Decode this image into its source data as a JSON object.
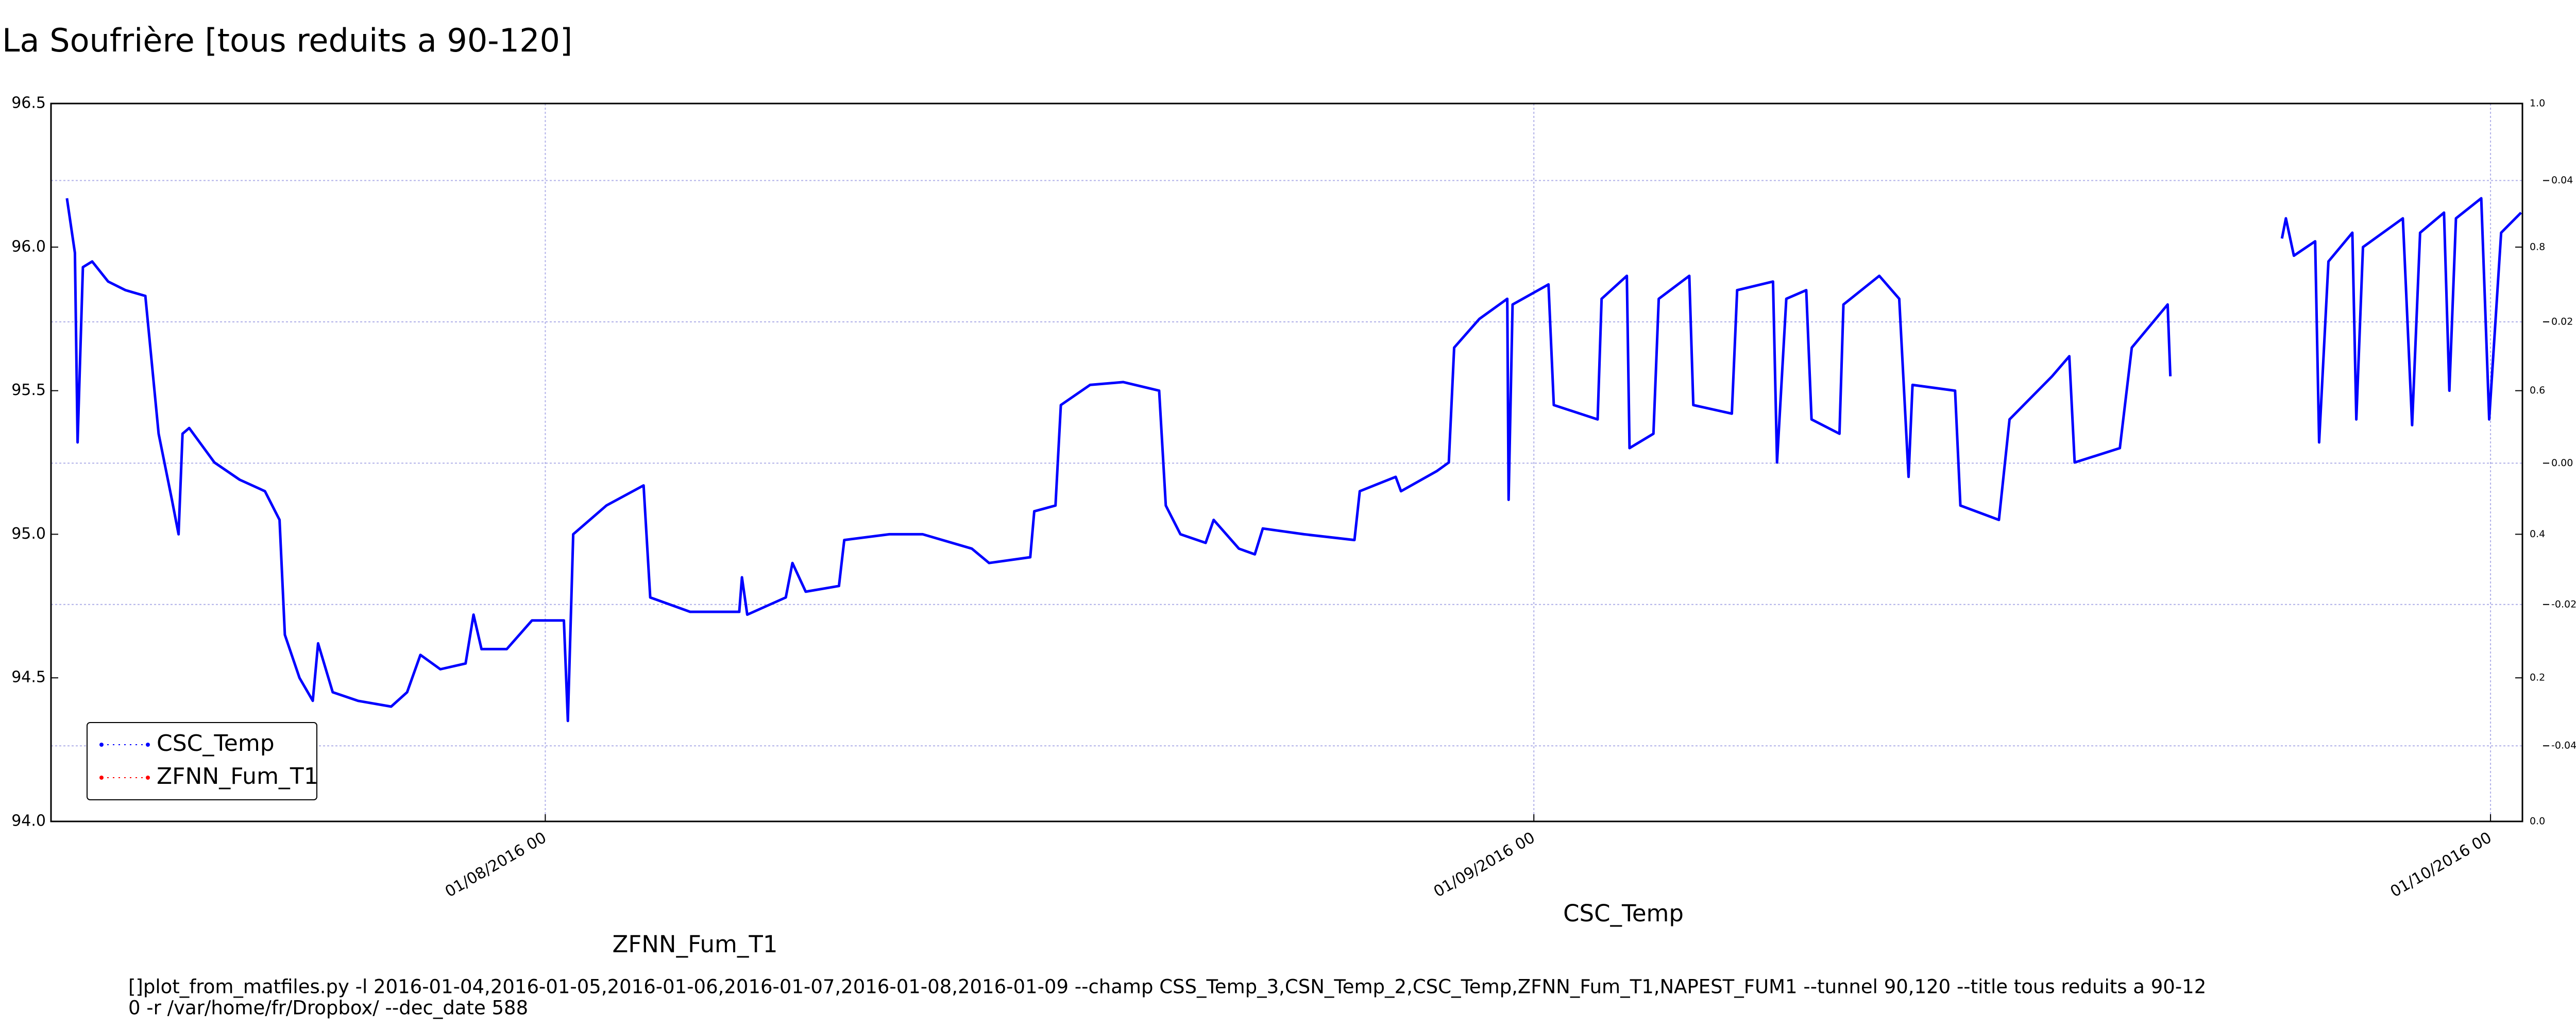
{
  "chart_data": {
    "type": "line",
    "title": "La Soufrière [tous reduits a 90-120]",
    "annotations": [
      {
        "text": "ZFNN_Fum_T1",
        "color": "#ff0000"
      },
      {
        "text": "CSC_Temp",
        "color": "#0000ff"
      }
    ],
    "footnote": [
      "[]plot_from_matfiles.py -l 2016-01-04,2016-01-05,2016-01-06,2016-01-07,2016-01-08,2016-01-09 --champ CSS_Temp_3,CSN_Temp_2,CSC_Temp,ZFNN_Fum_T1,NAPEST_FUM1 --tunnel 90,120 --title tous reduits a 90-12",
      "0 -r /var/home/fr/Dropbox/ --dec_date 588"
    ],
    "xlim": [
      "16/07/2016 12",
      "02/10/2016 00"
    ],
    "xticks": [
      "01/08/2016 00",
      "01/09/2016 00",
      "01/10/2016 00"
    ],
    "ylim": [
      94,
      96.5
    ],
    "yticks": [
      {
        "value": 94,
        "label": "94.0"
      },
      {
        "value": 94.5,
        "label": "94.5"
      },
      {
        "value": 95,
        "label": "95.0"
      },
      {
        "value": 95.5,
        "label": "95.5"
      },
      {
        "value": 96,
        "label": "96.0"
      },
      {
        "value": 96.5,
        "label": "96.5"
      }
    ],
    "y2lim": [
      0,
      1
    ],
    "y2ticks": [
      {
        "value": 0,
        "label": "0.0"
      },
      {
        "value": 0.2,
        "label": "0.2"
      },
      {
        "value": 0.4,
        "label": "0.4"
      },
      {
        "value": 0.6,
        "label": "0.6"
      },
      {
        "value": 0.8,
        "label": "0.8"
      },
      {
        "value": 1,
        "label": "1.0"
      }
    ],
    "y3lim": [
      -0.0507,
      0.0509
    ],
    "y3ticks": [
      -0.04,
      -0.02,
      {
        "value": 0,
        "label": "0.00"
      },
      0.02,
      0.04
    ],
    "grid": true,
    "legend": "lower left",
    "series": [
      {
        "name": "CSC_Temp",
        "color": "#0000ff",
        "x": [
          "17/07/2016 00",
          "17/07/2016 06",
          "17/07/2016 08",
          "17/07/2016 12",
          "17/07/2016 19",
          "18/07/2016 07",
          "18/07/2016 20",
          "19/07/2016 11",
          "19/07/2016 21",
          "20/07/2016 07",
          "20/07/2016 12",
          "20/07/2016 15",
          "20/07/2016 20",
          "21/07/2016 15",
          "22/07/2016 10",
          "23/07/2016 05",
          "23/07/2016 16",
          "23/07/2016 20",
          "24/07/2016 07",
          "24/07/2016 17",
          "24/07/2016 21",
          "25/07/2016 08",
          "26/07/2016 03",
          "27/07/2016 04",
          "27/07/2016 16",
          "28/07/2016 02",
          "28/07/2016 17",
          "29/07/2016 12",
          "29/07/2016 18",
          "30/07/2016 00",
          "30/07/2016 19",
          "31/07/2016 14",
          "01/08/2016 14",
          "01/08/2016 17",
          "01/08/2016 21",
          "02/08/2016 22",
          "04/08/2016 02",
          "04/08/2016 07",
          "05/08/2016 13",
          "07/08/2016 02",
          "07/08/2016 04",
          "07/08/2016 08",
          "08/08/2016 13",
          "08/08/2016 18",
          "09/08/2016 04",
          "10/08/2016 05",
          "10/08/2016 09",
          "11/08/2016 19",
          "12/08/2016 20",
          "14/08/2016 09",
          "14/08/2016 22",
          "16/08/2016 05",
          "16/08/2016 08",
          "17/08/2016 00",
          "17/08/2016 04",
          "18/08/2016 02",
          "19/08/2016 03",
          "20/08/2016 06",
          "20/08/2016 11",
          "20/08/2016 22",
          "21/08/2016 17",
          "21/08/2016 23",
          "22/08/2016 18",
          "23/08/2016 06",
          "23/08/2016 12",
          "24/08/2016 19",
          "26/08/2016 09",
          "26/08/2016 13",
          "27/08/2016 16",
          "27/08/2016 20",
          "28/08/2016 23",
          "29/08/2016 08",
          "29/08/2016 12",
          "30/08/2016 07",
          "31/08/2016 04",
          "31/08/2016 05",
          "31/08/2016 08",
          "01/09/2016 11",
          "01/09/2016 15",
          "03/09/2016 00",
          "03/09/2016 03",
          "03/09/2016 22",
          "04/09/2016 00",
          "04/09/2016 18",
          "04/09/2016 22",
          "05/09/2016 21",
          "06/09/2016 00",
          "07/09/2016 05",
          "07/09/2016 09",
          "08/09/2016 12",
          "08/09/2016 15",
          "08/09/2016 22",
          "09/09/2016 13",
          "09/09/2016 17",
          "10/09/2016 14",
          "10/09/2016 17",
          "11/09/2016 20",
          "12/09/2016 11",
          "12/09/2016 18",
          "12/09/2016 21",
          "14/09/2016 05",
          "14/09/2016 09",
          "15/09/2016 14",
          "15/09/2016 22",
          "17/09/2016 06",
          "17/09/2016 19",
          "17/09/2016 23",
          "19/09/2016 09",
          "19/09/2016 18",
          "20/09/2016 21",
          "20/09/2016 23",
          "22/09/2016 12",
          "24/09/2016 11",
          "24/09/2016 14",
          "24/09/2016 20",
          "25/09/2016 12",
          "25/09/2016 15",
          "25/09/2016 22",
          "26/09/2016 16",
          "26/09/2016 19",
          "27/09/2016 00",
          "28/09/2016 06",
          "28/09/2016 13",
          "28/09/2016 19",
          "29/09/2016 13",
          "29/09/2016 17",
          "29/09/2016 22",
          "30/09/2016 17",
          "30/09/2016 23",
          "01/10/2016 08",
          "01/10/2016 23"
        ],
        "values": [
          96.17,
          95.98,
          95.32,
          95.93,
          95.95,
          95.88,
          95.85,
          95.83,
          95.35,
          95.12,
          95.0,
          95.35,
          95.37,
          95.25,
          95.19,
          95.15,
          95.05,
          94.65,
          94.5,
          94.42,
          94.62,
          94.45,
          94.42,
          94.4,
          94.45,
          94.58,
          94.53,
          94.55,
          94.72,
          94.6,
          94.6,
          94.7,
          94.7,
          94.35,
          95.0,
          95.1,
          95.17,
          94.78,
          94.73,
          94.73,
          94.85,
          94.72,
          94.78,
          94.9,
          94.8,
          94.82,
          94.98,
          95.0,
          95.0,
          94.95,
          94.9,
          94.92,
          95.08,
          95.1,
          95.45,
          95.52,
          95.53,
          95.5,
          95.1,
          95.0,
          94.97,
          95.05,
          94.95,
          94.93,
          95.02,
          95.0,
          94.98,
          95.15,
          95.2,
          95.15,
          95.22,
          95.25,
          95.65,
          95.75,
          95.82,
          95.12,
          95.8,
          95.87,
          95.45,
          95.4,
          95.82,
          95.9,
          95.3,
          95.35,
          95.82,
          95.9,
          95.45,
          95.42,
          95.85,
          95.88,
          95.25,
          95.82,
          95.85,
          95.4,
          95.35,
          95.8,
          95.9,
          95.82,
          95.2,
          95.52,
          95.5,
          95.1,
          95.05,
          95.4,
          95.55,
          95.62,
          95.25,
          95.3,
          95.65,
          95.8,
          95.55,
          null,
          96.03,
          96.1,
          95.97,
          96.02,
          95.32,
          95.95,
          96.05,
          95.4,
          96.0,
          96.1,
          95.38,
          96.05,
          96.12,
          95.5,
          96.1,
          96.17,
          95.4,
          96.05,
          96.12
        ]
      },
      {
        "name": "ZFNN_Fum_T1",
        "color": "#ff0000",
        "x": [],
        "values": []
      }
    ]
  }
}
